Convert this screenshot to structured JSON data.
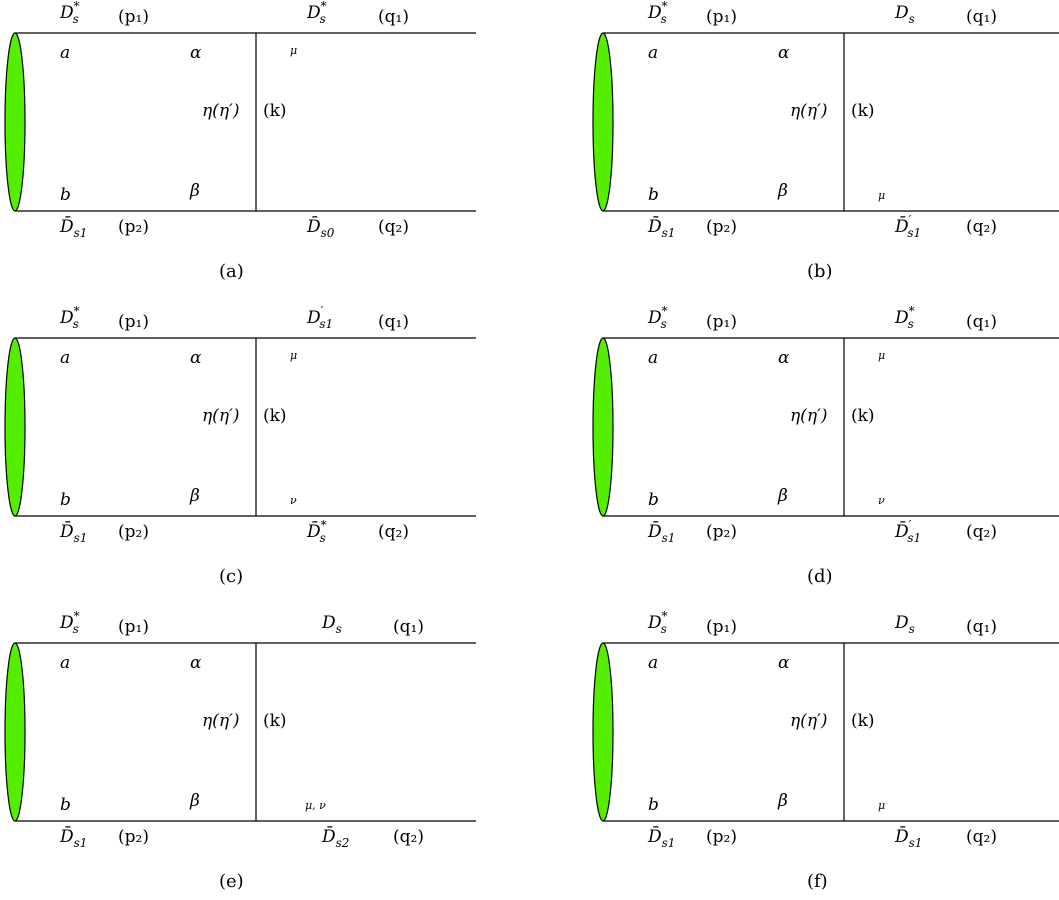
{
  "colors": {
    "blob": "#55ee00",
    "line": "#000000"
  },
  "panels": [
    {
      "caption": "(a)",
      "p1": {
        "base": "D",
        "sup": "*",
        "sub": "s"
      },
      "q1": {
        "base": "D",
        "sup": "*",
        "sub": "s"
      },
      "p2": {
        "base": "D̄",
        "sup": "",
        "sub": "s1"
      },
      "q2": {
        "base": "D̄",
        "sup": "",
        "sub": "s0"
      },
      "p1_mom": "(p₁)",
      "q1_mom": "(q₁)",
      "p2_mom": "(p₂)",
      "q2_mom": "(q₂)",
      "a": "a",
      "b": "b",
      "alpha": "α",
      "beta": "β",
      "exchange": "η(η′)",
      "k": "(k)",
      "top_index": "μ",
      "bottom_index": ""
    },
    {
      "caption": "(b)",
      "p1": {
        "base": "D",
        "sup": "*",
        "sub": "s"
      },
      "q1": {
        "base": "D",
        "sup": "",
        "sub": "s"
      },
      "p2": {
        "base": "D̄",
        "sup": "",
        "sub": "s1"
      },
      "q2": {
        "base": "D̄",
        "sup": "′",
        "sub": "s1"
      },
      "p1_mom": "(p₁)",
      "q1_mom": "(q₁)",
      "p2_mom": "(p₂)",
      "q2_mom": "(q₂)",
      "a": "a",
      "b": "b",
      "alpha": "α",
      "beta": "β",
      "exchange": "η(η′)",
      "k": "(k)",
      "top_index": "",
      "bottom_index": "μ"
    },
    {
      "caption": "(c)",
      "p1": {
        "base": "D",
        "sup": "*",
        "sub": "s"
      },
      "q1": {
        "base": "D",
        "sup": "′",
        "sub": "s1"
      },
      "p2": {
        "base": "D̄",
        "sup": "",
        "sub": "s1"
      },
      "q2": {
        "base": "D̄",
        "sup": "*",
        "sub": "s"
      },
      "p1_mom": "(p₁)",
      "q1_mom": "(q₁)",
      "p2_mom": "(p₂)",
      "q2_mom": "(q₂)",
      "a": "a",
      "b": "b",
      "alpha": "α",
      "beta": "β",
      "exchange": "η(η′)",
      "k": "(k)",
      "top_index": "μ",
      "bottom_index": "ν"
    },
    {
      "caption": "(d)",
      "p1": {
        "base": "D",
        "sup": "*",
        "sub": "s"
      },
      "q1": {
        "base": "D",
        "sup": "*",
        "sub": "s"
      },
      "p2": {
        "base": "D̄",
        "sup": "",
        "sub": "s1"
      },
      "q2": {
        "base": "D̄",
        "sup": "′",
        "sub": "s1"
      },
      "p1_mom": "(p₁)",
      "q1_mom": "(q₁)",
      "p2_mom": "(p₂)",
      "q2_mom": "(q₂)",
      "a": "a",
      "b": "b",
      "alpha": "α",
      "beta": "β",
      "exchange": "η(η′)",
      "k": "(k)",
      "top_index": "μ",
      "bottom_index": "ν"
    },
    {
      "caption": "(e)",
      "p1": {
        "base": "D",
        "sup": "*",
        "sub": "s"
      },
      "q1": {
        "base": "D",
        "sup": "",
        "sub": "s"
      },
      "p2": {
        "base": "D̄",
        "sup": "",
        "sub": "s1"
      },
      "q2": {
        "base": "D̄",
        "sup": "",
        "sub": "s2"
      },
      "p1_mom": "(p₁)",
      "q1_mom": "(q₁)",
      "p2_mom": "(p₂)",
      "q2_mom": "(q₂)",
      "a": "a",
      "b": "b",
      "alpha": "α",
      "beta": "β",
      "exchange": "η(η′)",
      "k": "(k)",
      "top_index": "",
      "bottom_index": "μ, ν"
    },
    {
      "caption": "(f)",
      "p1": {
        "base": "D",
        "sup": "*",
        "sub": "s"
      },
      "q1": {
        "base": "D",
        "sup": "",
        "sub": "s"
      },
      "p2": {
        "base": "D̄",
        "sup": "",
        "sub": "s1"
      },
      "q2": {
        "base": "D̄",
        "sup": "",
        "sub": "s1"
      },
      "p1_mom": "(p₁)",
      "q1_mom": "(q₁)",
      "p2_mom": "(p₂)",
      "q2_mom": "(q₂)",
      "a": "a",
      "b": "b",
      "alpha": "α",
      "beta": "β",
      "exchange": "η(η′)",
      "k": "(k)",
      "top_index": "",
      "bottom_index": "μ"
    }
  ]
}
